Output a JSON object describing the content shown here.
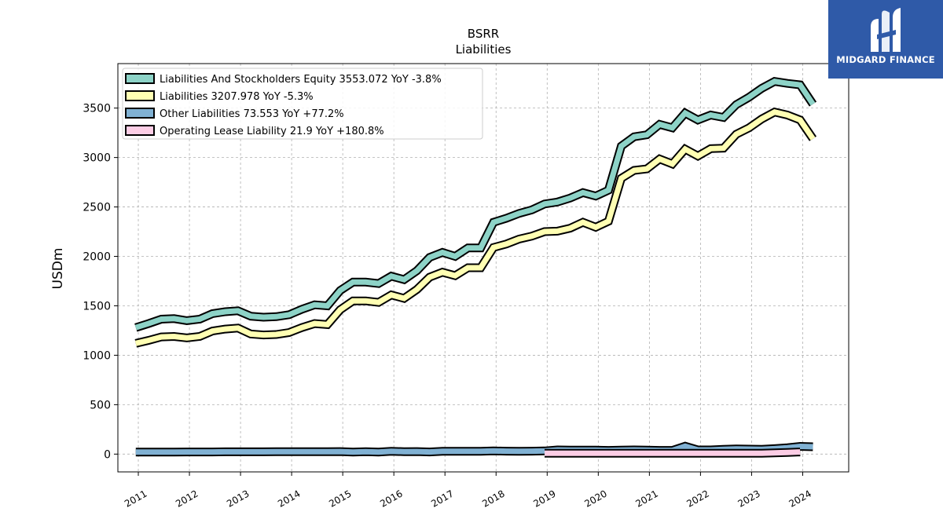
{
  "logo": {
    "text": "MIDGARD FINANCE",
    "icon": "midgard-logo-icon"
  },
  "chart_data": {
    "type": "line",
    "title": "BSRR",
    "subtitle": "Liabilities",
    "ylabel": "USDm",
    "xlabel": "",
    "ylim": [
      -180,
      3950
    ],
    "xlim": [
      2010.6,
      2024.9
    ],
    "yticks": [
      0,
      500,
      1000,
      1500,
      2000,
      2500,
      3000,
      3500
    ],
    "xticks": [
      "2011",
      "2012",
      "2013",
      "2014",
      "2015",
      "2016",
      "2017",
      "2018",
      "2019",
      "2020",
      "2021",
      "2022",
      "2023",
      "2024"
    ],
    "grid": true,
    "legend_position": "top-left",
    "series": [
      {
        "name": "Liabilities And Stockholders Equity",
        "legend": "Liabilities And Stockholders Equity  3553.072 YoY -3.8%",
        "color": "#8dd3c7",
        "x": [
          2010.95,
          2011.2,
          2011.45,
          2011.7,
          2011.95,
          2012.2,
          2012.45,
          2012.7,
          2012.95,
          2013.2,
          2013.45,
          2013.7,
          2013.95,
          2014.2,
          2014.45,
          2014.7,
          2014.95,
          2015.2,
          2015.45,
          2015.7,
          2015.95,
          2016.2,
          2016.45,
          2016.7,
          2016.95,
          2017.2,
          2017.45,
          2017.7,
          2017.95,
          2018.2,
          2018.45,
          2018.7,
          2018.95,
          2019.2,
          2019.45,
          2019.7,
          2019.95,
          2020.2,
          2020.45,
          2020.7,
          2020.95,
          2021.2,
          2021.45,
          2021.7,
          2021.95,
          2022.2,
          2022.45,
          2022.7,
          2022.95,
          2023.2,
          2023.45,
          2023.7,
          2023.95,
          2024.2
        ],
        "values": [
          1280,
          1320,
          1365,
          1370,
          1350,
          1365,
          1420,
          1440,
          1450,
          1395,
          1385,
          1390,
          1410,
          1465,
          1510,
          1500,
          1655,
          1740,
          1740,
          1725,
          1800,
          1765,
          1855,
          1990,
          2040,
          2000,
          2085,
          2085,
          2345,
          2385,
          2435,
          2470,
          2530,
          2550,
          2590,
          2645,
          2610,
          2670,
          3115,
          3210,
          3230,
          3335,
          3300,
          3450,
          3380,
          3430,
          3405,
          3535,
          3610,
          3700,
          3770,
          3750,
          3735,
          3540
        ]
      },
      {
        "name": "Liabilities",
        "legend": "Liabilities  3207.978 YoY -5.3%",
        "color": "#ffffb3",
        "x": [
          2010.95,
          2011.2,
          2011.45,
          2011.7,
          2011.95,
          2012.2,
          2012.45,
          2012.7,
          2012.95,
          2013.2,
          2013.45,
          2013.7,
          2013.95,
          2014.2,
          2014.45,
          2014.7,
          2014.95,
          2015.2,
          2015.45,
          2015.7,
          2015.95,
          2016.2,
          2016.45,
          2016.7,
          2016.95,
          2017.2,
          2017.45,
          2017.7,
          2017.95,
          2018.2,
          2018.45,
          2018.7,
          2018.95,
          2019.2,
          2019.45,
          2019.7,
          2019.95,
          2020.2,
          2020.45,
          2020.7,
          2020.95,
          2021.2,
          2021.45,
          2021.7,
          2021.95,
          2022.2,
          2022.45,
          2022.7,
          2022.95,
          2023.2,
          2023.45,
          2023.7,
          2023.95,
          2024.2
        ],
        "values": [
          1120,
          1150,
          1185,
          1190,
          1175,
          1190,
          1245,
          1265,
          1275,
          1215,
          1205,
          1210,
          1230,
          1280,
          1320,
          1310,
          1460,
          1550,
          1550,
          1535,
          1610,
          1575,
          1665,
          1790,
          1840,
          1805,
          1885,
          1885,
          2090,
          2125,
          2175,
          2205,
          2250,
          2255,
          2285,
          2345,
          2295,
          2355,
          2790,
          2870,
          2885,
          2985,
          2935,
          3085,
          3015,
          3090,
          3095,
          3235,
          3300,
          3390,
          3460,
          3430,
          3380,
          3190
        ]
      },
      {
        "name": "Other Liabilities",
        "legend": "Other Liabilities  73.553 YoY +77.2%",
        "color": "#80b1d3",
        "x": [
          2010.95,
          2011.2,
          2011.45,
          2011.7,
          2011.95,
          2012.2,
          2012.45,
          2012.7,
          2012.95,
          2013.2,
          2013.45,
          2013.7,
          2013.95,
          2014.2,
          2014.45,
          2014.7,
          2014.95,
          2015.2,
          2015.45,
          2015.7,
          2015.95,
          2016.2,
          2016.45,
          2016.7,
          2016.95,
          2017.2,
          2017.45,
          2017.7,
          2017.95,
          2018.2,
          2018.45,
          2018.7,
          2018.95,
          2019.2,
          2019.45,
          2019.7,
          2019.95,
          2020.2,
          2020.45,
          2020.7,
          2020.95,
          2021.2,
          2021.45,
          2021.7,
          2021.95,
          2022.2,
          2022.45,
          2022.7,
          2022.95,
          2023.2,
          2023.45,
          2023.7,
          2023.95,
          2024.2
        ],
        "values": [
          20,
          20,
          21,
          21,
          22,
          22,
          22,
          23,
          23,
          23,
          23,
          24,
          24,
          24,
          25,
          25,
          26,
          20,
          25,
          20,
          28,
          25,
          26,
          22,
          28,
          28,
          28,
          28,
          32,
          30,
          28,
          30,
          32,
          42,
          40,
          40,
          40,
          38,
          40,
          42,
          40,
          38,
          38,
          80,
          42,
          42,
          48,
          52,
          50,
          48,
          55,
          65,
          78,
          74
        ]
      },
      {
        "name": "Operating Lease Liability",
        "legend": "Operating Lease Liability  21.9 YoY +180.8%",
        "color": "#fccde5",
        "x": [
          2018.95,
          2019.2,
          2019.45,
          2019.7,
          2019.95,
          2020.2,
          2020.45,
          2020.7,
          2020.95,
          2021.2,
          2021.45,
          2021.7,
          2021.95,
          2022.2,
          2022.45,
          2022.7,
          2022.95,
          2023.2,
          2023.45,
          2023.7,
          2023.95
        ],
        "values": [
          8,
          8,
          8,
          8,
          8,
          8,
          8,
          8,
          8,
          8,
          8,
          8,
          8,
          8,
          8,
          8,
          8,
          8,
          12,
          16,
          22
        ]
      }
    ]
  }
}
